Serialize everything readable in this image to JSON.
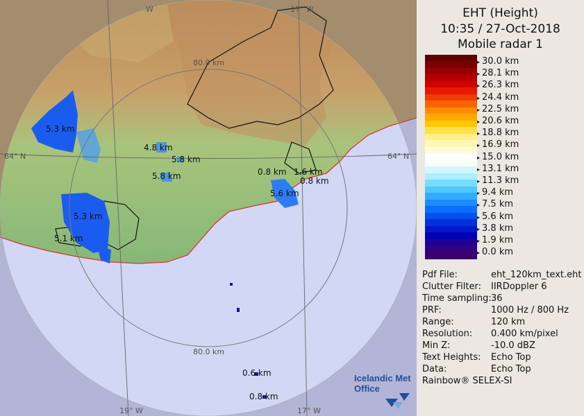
{
  "map": {
    "range_rings": [
      {
        "label": "80.0 km"
      },
      {
        "label": "80.0 km"
      }
    ],
    "grid_labels": {
      "lat_left": "64° N",
      "lat_right": "64° N",
      "lon_19_bottom": "19° W",
      "lon_17_bottom": "17° W",
      "lon_17_top": "17° W",
      "lon_w_top": "W"
    },
    "echo_labels": [
      {
        "text": "5.3 km"
      },
      {
        "text": "4.8 km"
      },
      {
        "text": "5.8 km"
      },
      {
        "text": "5.8 km"
      },
      {
        "text": "0.8 km"
      },
      {
        "text": "1.6 km"
      },
      {
        "text": "0.8 km"
      },
      {
        "text": "5.6 km"
      },
      {
        "text": "5.3 km"
      },
      {
        "text": "5.1 km"
      },
      {
        "text": "0.6 km"
      },
      {
        "text": "0.8 km"
      }
    ],
    "logo": {
      "line1": "Icelandic Met",
      "line2": "Office"
    }
  },
  "panel": {
    "title": "EHT (Height)",
    "datetime": "10:35 / 27-Oct-2018",
    "radar": "Mobile radar 1",
    "legend": {
      "labels": [
        "30.0 km",
        "28.1 km",
        "26.3 km",
        "24.4 km",
        "22.5 km",
        "20.6 km",
        "18.8 km",
        "16.9 km",
        "15.0 km",
        "13.1 km",
        "11.3 km",
        "9.4 km",
        "7.5 km",
        "5.6 km",
        "3.8 km",
        "1.9 km",
        "0.0 km"
      ],
      "colors": [
        "#5a0000",
        "#7a0000",
        "#960000",
        "#b40000",
        "#d10000",
        "#e61a00",
        "#f03c00",
        "#fa6400",
        "#ff8c00",
        "#ffaa00",
        "#ffc800",
        "#ffe14b",
        "#fff08c",
        "#fff8b4",
        "#fffcd8",
        "#ffffff",
        "#f5fff5",
        "#d2f5ff",
        "#aaf0ff",
        "#78dcff",
        "#50c8ff",
        "#32aaff",
        "#1e8cff",
        "#0a6eff",
        "#0050f0",
        "#0032dc",
        "#0019c8",
        "#0000b4",
        "#1e0096",
        "#320082",
        "#3c006e"
      ]
    },
    "info": [
      {
        "key": "Pdf File:",
        "value": "eht_120km_text.eht"
      },
      {
        "key": "Clutter Filter:",
        "value": "IIRDoppler 6"
      },
      {
        "key": "Time sampling:",
        "value": "36"
      },
      {
        "key": "PRF:",
        "value": "1000 Hz / 800 Hz"
      },
      {
        "key": "Range:",
        "value": "120 km"
      },
      {
        "key": "Resolution:",
        "value": "0.400 km/pixel"
      },
      {
        "key": "Min Z:",
        "value": "-10.0 dBZ"
      },
      {
        "key": "Text Heights:",
        "value": "Echo Top"
      },
      {
        "key": "Data:",
        "value": "Echo Top"
      }
    ],
    "footer": "Rainbow® SELEX-SI"
  }
}
